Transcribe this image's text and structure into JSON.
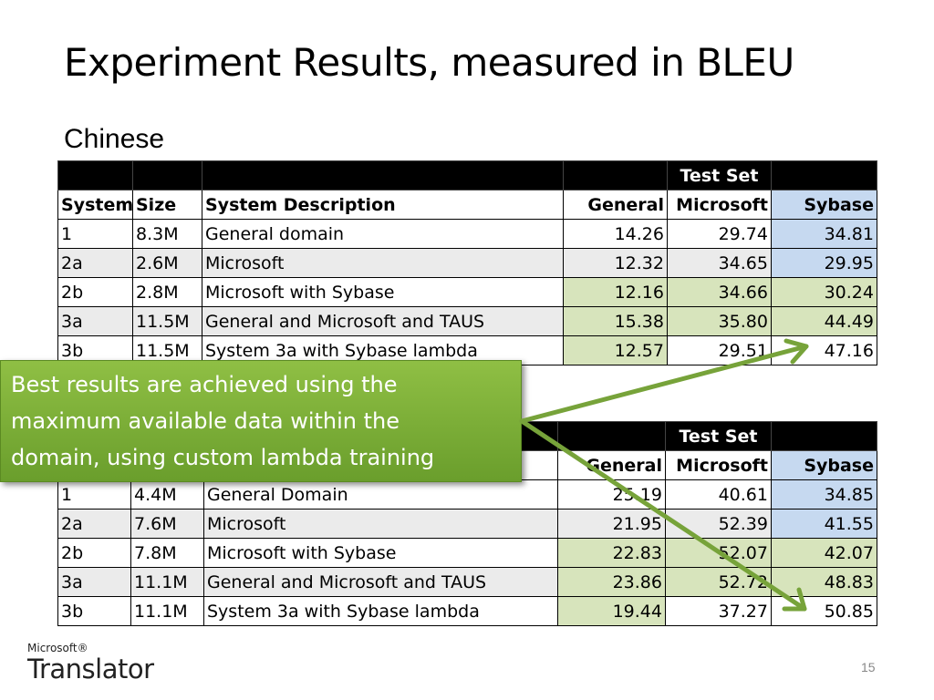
{
  "slide": {
    "title": "Experiment Results, measured in BLEU",
    "subhead": "Chinese",
    "page_number": "15"
  },
  "table1": {
    "group_header": "Test Set",
    "columns": [
      "System",
      "Size",
      "System Description",
      "General",
      "Microsoft",
      "Sybase"
    ],
    "rows": [
      [
        "1",
        "8.3M",
        "General domain",
        "14.26",
        "29.74",
        "34.81"
      ],
      [
        "2a",
        "2.6M",
        "Microsoft",
        "12.32",
        "34.65",
        "29.95"
      ],
      [
        "2b",
        "2.8M",
        "Microsoft with Sybase",
        "12.16",
        "34.66",
        "30.24"
      ],
      [
        "3a",
        "11.5M",
        "General and Microsoft and TAUS",
        "15.38",
        "35.80",
        "44.49"
      ],
      [
        "3b",
        "11.5M",
        "System 3a with Sybase lambda",
        "12.57",
        "29.51",
        "47.16"
      ]
    ]
  },
  "table2": {
    "group_header": "Test Set",
    "columns": [
      "",
      "",
      "",
      "General",
      "Microsoft",
      "Sybase"
    ],
    "rows": [
      [
        "1",
        "4.4M",
        "General Domain",
        "25.19",
        "40.61",
        "34.85"
      ],
      [
        "2a",
        "7.6M",
        "Microsoft",
        "21.95",
        "52.39",
        "41.55"
      ],
      [
        "2b",
        "7.8M",
        "Microsoft with Sybase",
        "22.83",
        "52.07",
        "42.07"
      ],
      [
        "3a",
        "11.1M",
        "General and Microsoft and TAUS",
        "23.86",
        "52.72",
        "48.83"
      ],
      [
        "3b",
        "11.1M",
        "System 3a with Sybase lambda",
        "19.44",
        "37.27",
        "50.85"
      ]
    ]
  },
  "callout": {
    "line1": "Best results are achieved using the",
    "line2": "maximum available data within the",
    "line3": "domain, using custom lambda training"
  },
  "logo": {
    "small": "Microsoft®",
    "big": "Translator"
  },
  "colors": {
    "callout_green": "#7aad35",
    "arrow_green": "#77a33a",
    "sybase_blue": "#c6d9f0",
    "highlight_green": "#d7e4bc"
  }
}
